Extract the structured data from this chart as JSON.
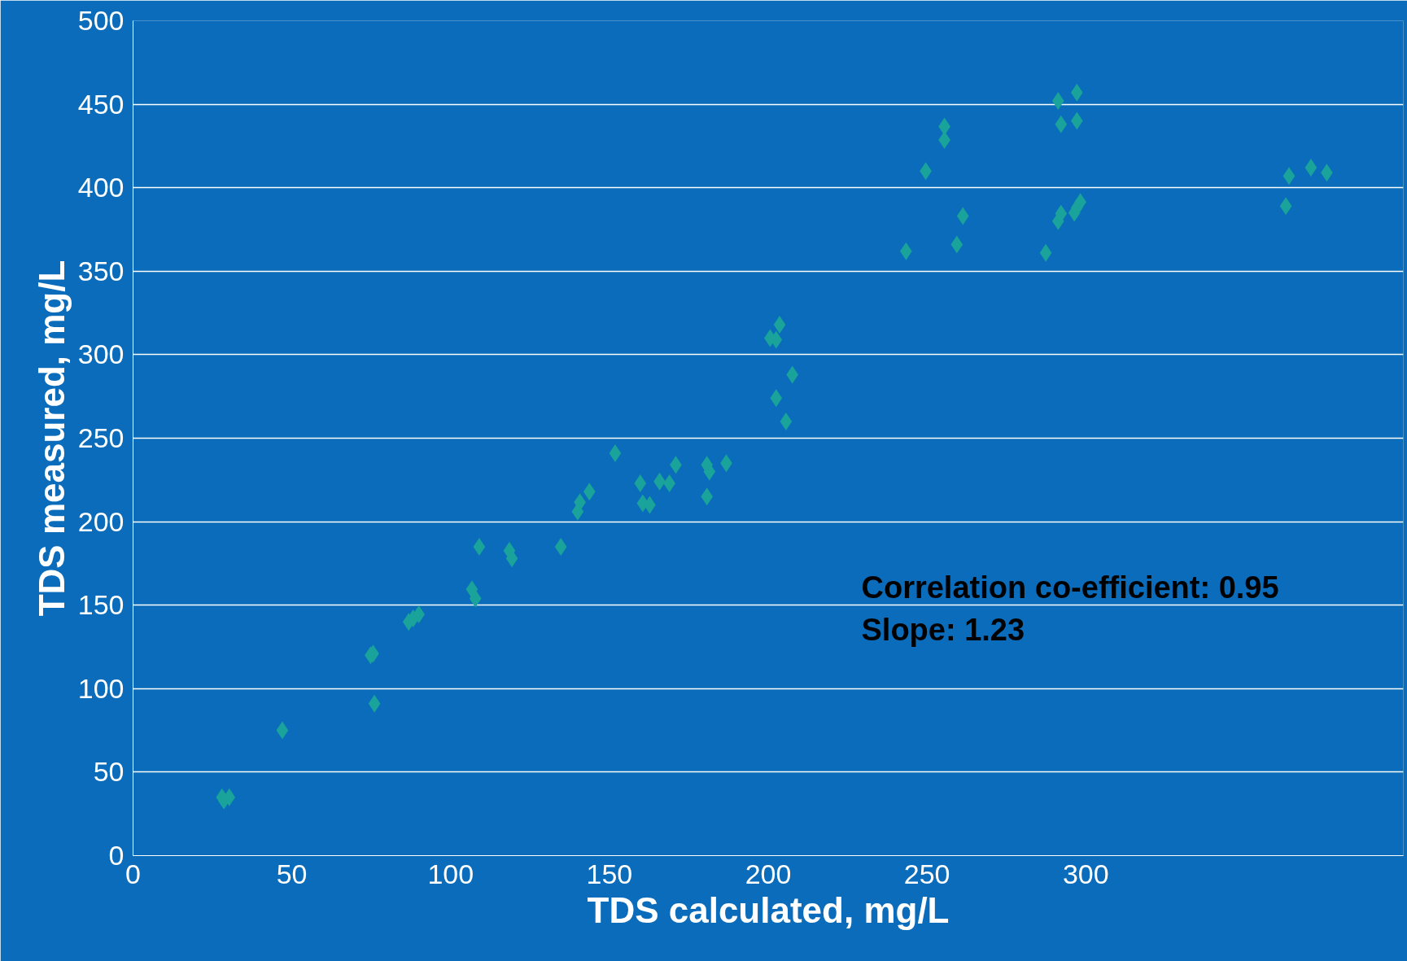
{
  "chart_data": {
    "type": "scatter",
    "xlabel": "TDS calculated, mg/L",
    "ylabel": "TDS measured, mg/L",
    "xlim": [
      0,
      400
    ],
    "xticks": [
      0,
      50,
      100,
      150,
      200,
      250,
      300
    ],
    "ylim": [
      0,
      500
    ],
    "yticks": [
      0,
      50,
      100,
      150,
      200,
      250,
      300,
      350,
      400,
      450,
      500
    ],
    "grid": "y",
    "marker": "diamond",
    "annotations": [
      "Correlation co-efficient: 0.95",
      "Slope: 1.23"
    ],
    "series": [
      {
        "color": "#1aa39a",
        "x": [
          28,
          28.6,
          30.3,
          47,
          75.6,
          74.8,
          76,
          86.8,
          88.2,
          90,
          106.7,
          107.8,
          109,
          118.5,
          119.3,
          134.7,
          140,
          140.7,
          143.7,
          151.8,
          159.7,
          160.5,
          162.7,
          165.8,
          168.9,
          170.9,
          180.7,
          181.5,
          180.7,
          186.8,
          200.6,
          202.5,
          203.6,
          202.5,
          205.6,
          207.6,
          243.4,
          249.6,
          255.5,
          255.5,
          259.4,
          261.3,
          287.4,
          291.3,
          292.2,
          291.3,
          292.2,
          297.2,
          297.2,
          296.4,
          297.2,
          298.3,
          363,
          364,
          370.9,
          375.9
        ],
        "values": [
          35,
          33,
          35,
          75,
          121,
          120,
          91,
          140,
          142,
          144.5,
          159.5,
          154,
          185,
          182.6,
          178,
          185,
          206,
          211.6,
          218,
          241,
          223,
          211,
          210,
          224,
          223,
          234,
          234,
          230,
          215,
          235,
          310,
          309,
          318,
          274,
          260,
          288,
          362,
          410,
          436.6,
          428.6,
          366,
          383,
          361,
          452,
          438,
          380,
          384.5,
          457,
          440,
          385,
          388,
          391.5,
          389,
          407,
          412,
          409
        ]
      }
    ]
  }
}
